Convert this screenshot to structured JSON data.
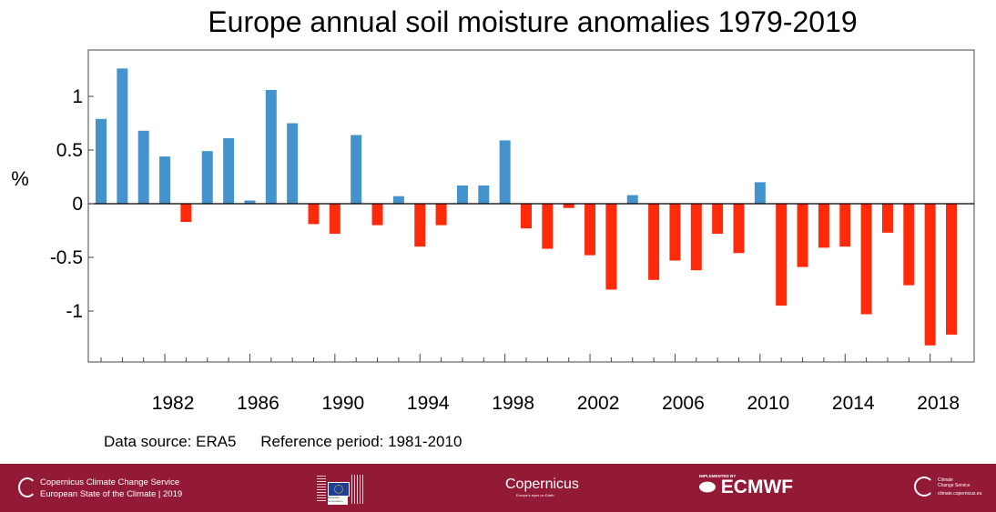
{
  "chart_data": {
    "type": "bar",
    "title": "Europe annual soil moisture anomalies 1979-2019",
    "ylabel": "%",
    "xlabel": "",
    "ylim": [
      -1.45,
      1.4
    ],
    "yticks": [
      -1,
      -0.5,
      0,
      0.5,
      1
    ],
    "ytick_labels": [
      "-1",
      "-0.5",
      "0",
      "0.5",
      "1"
    ],
    "xtick_labels": [
      "1982",
      "1986",
      "1990",
      "1994",
      "1998",
      "2002",
      "2006",
      "2010",
      "2014",
      "2018"
    ],
    "grid": false,
    "colors": {
      "positive": "#4593cc",
      "negative": "#ff2a0a"
    },
    "x": [
      1979,
      1980,
      1981,
      1982,
      1983,
      1984,
      1985,
      1986,
      1987,
      1988,
      1989,
      1990,
      1991,
      1992,
      1993,
      1994,
      1995,
      1996,
      1997,
      1998,
      1999,
      2000,
      2001,
      2002,
      2003,
      2004,
      2005,
      2006,
      2007,
      2008,
      2009,
      2010,
      2011,
      2012,
      2013,
      2014,
      2015,
      2016,
      2017,
      2018,
      2019
    ],
    "values": [
      0.79,
      1.26,
      0.68,
      0.44,
      -0.17,
      0.49,
      0.61,
      0.03,
      1.06,
      0.75,
      -0.19,
      -0.28,
      0.64,
      -0.2,
      0.07,
      -0.4,
      -0.2,
      0.17,
      0.17,
      0.59,
      -0.23,
      -0.42,
      -0.04,
      -0.48,
      -0.8,
      0.08,
      -0.71,
      -0.53,
      -0.62,
      -0.28,
      -0.46,
      0.2,
      -0.95,
      -0.59,
      -0.41,
      -0.4,
      -1.03,
      -0.27,
      -0.76,
      -1.32,
      -1.22
    ]
  },
  "notes": {
    "data_source": "Data source: ERA5",
    "reference_period": "Reference period: 1981-2010"
  },
  "footer": {
    "line1": "Copernicus Climate Change Service",
    "line2": "European State of the Climate | 2019",
    "eu_logo": "European Commission",
    "copernicus_logo": "Copernicus",
    "copernicus_tagline": "Europe's eyes on Earth",
    "ecmwf_prefix": "IMPLEMENTED BY",
    "ecmwf_logo": "ECMWF",
    "c3s_line1": "Climate",
    "c3s_line2": "Change Service",
    "c3s_url": "climate.copernicus.eu",
    "background": "#931a36"
  }
}
